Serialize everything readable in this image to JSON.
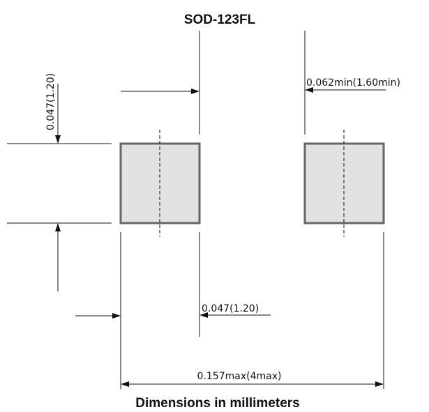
{
  "title": "SOD-123FL",
  "footer": "Dimensions in millimeters",
  "dimensions": {
    "pad_height": "0.047(1.20)",
    "pad_gap": "0.062min(1.60min)",
    "pad_width": "0.047(1.20)",
    "overall_length": "0.157max(4max)"
  },
  "colors": {
    "pad_fill": "#e2e2e2",
    "pad_outline": "#666666",
    "line": "#111111"
  }
}
